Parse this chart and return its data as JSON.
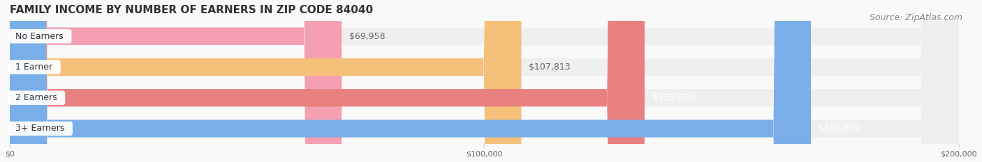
{
  "title": "FAMILY INCOME BY NUMBER OF EARNERS IN ZIP CODE 84040",
  "source": "Source: ZipAtlas.com",
  "categories": [
    "No Earners",
    "1 Earner",
    "2 Earners",
    "3+ Earners"
  ],
  "values": [
    69958,
    107813,
    133780,
    168839
  ],
  "labels": [
    "$69,958",
    "$107,813",
    "$133,780",
    "$168,839"
  ],
  "bar_colors": [
    "#f4a0b0",
    "#f5c07a",
    "#e88080",
    "#7aaee8"
  ],
  "bar_bg_color": "#efefef",
  "label_colors": [
    "#666666",
    "#666666",
    "#ffffff",
    "#ffffff"
  ],
  "xlim": [
    0,
    200000
  ],
  "xticks": [
    0,
    100000,
    200000
  ],
  "xtick_labels": [
    "$0",
    "$100,000",
    "$200,000"
  ],
  "title_fontsize": 11,
  "source_fontsize": 9,
  "label_fontsize": 9,
  "category_fontsize": 9,
  "bar_height": 0.55,
  "figsize": [
    14.06,
    2.33
  ],
  "dpi": 100
}
